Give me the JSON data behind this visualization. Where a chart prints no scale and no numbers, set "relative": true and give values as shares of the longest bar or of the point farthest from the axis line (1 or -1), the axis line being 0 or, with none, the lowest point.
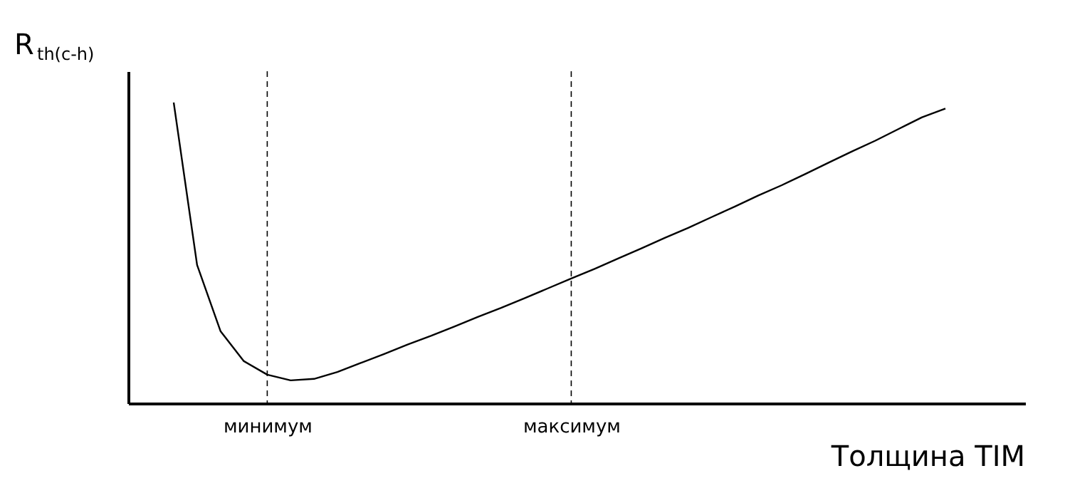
{
  "chart_data": {
    "type": "line",
    "relative": true,
    "xlabel": "Толщина TIM",
    "ylabel": "R$_{th(c-h)}$",
    "categories": [
      null,
      null,
      null,
      null,
      "минимум",
      null,
      null,
      null,
      null,
      null,
      null,
      null,
      null,
      null,
      null,
      null,
      null,
      "максимум",
      null,
      null,
      null,
      null,
      null,
      null,
      null,
      null,
      null,
      null,
      null,
      null,
      null,
      null,
      null,
      null
    ],
    "series": [
      {
        "color": "#000000",
        "values": [
          1.0,
          0.46,
          0.24,
          0.14,
          0.095,
          0.076,
          0.081,
          0.104,
          0.134,
          0.164,
          0.195,
          0.224,
          0.255,
          0.287,
          0.317,
          0.349,
          0.382,
          0.415,
          0.447,
          0.481,
          0.515,
          0.55,
          0.583,
          0.619,
          0.654,
          0.691,
          0.725,
          0.762,
          0.8,
          0.837,
          0.873,
          0.912,
          0.951,
          0.98
        ]
      }
    ],
    "marker": "none",
    "line_style": "solid",
    "ref_lines": [
      {
        "axis": "x",
        "value": "минимум",
        "color": "#000000",
        "line_style": "dashed"
      },
      {
        "axis": "x",
        "value": "максимум",
        "color": "#000000",
        "line_style": "dashed"
      }
    ]
  }
}
